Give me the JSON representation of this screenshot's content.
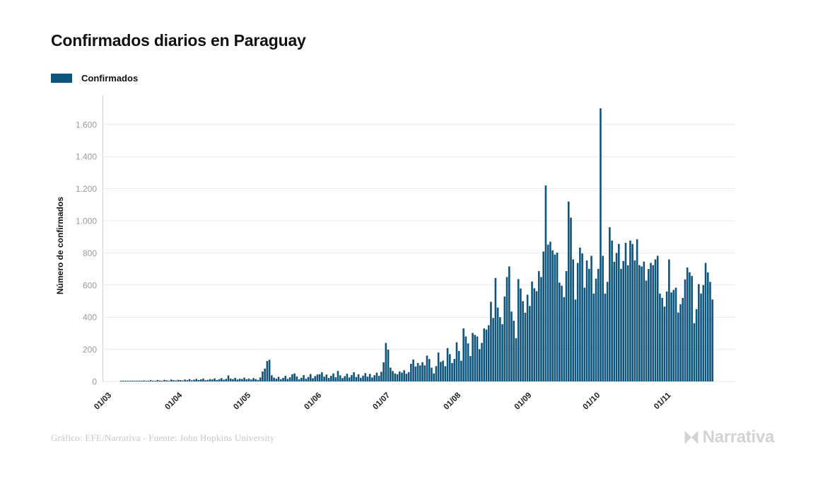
{
  "header": {
    "title": "Confirmados diarios en Paraguay"
  },
  "legend": {
    "label": "Confirmados",
    "swatch_color": "#0e557c"
  },
  "chart_data": {
    "type": "bar",
    "title": "Confirmados diarios en Paraguay",
    "ylabel": "Número de confirmados",
    "xlabel": "",
    "legend": [
      "Confirmados"
    ],
    "bar_color": "#0e557c",
    "grid": true,
    "ylim": [
      0,
      1700
    ],
    "y_ticks": [
      0,
      200,
      400,
      600,
      800,
      1000,
      1200,
      1400,
      1600
    ],
    "y_tick_labels": [
      "0",
      "200",
      "400",
      "600",
      "800",
      "1.000",
      "1.200",
      "1.400",
      "1.600"
    ],
    "x_ticks": [
      {
        "label": "01/03",
        "day": 0
      },
      {
        "label": "01/04",
        "day": 31
      },
      {
        "label": "01/05",
        "day": 61
      },
      {
        "label": "01/06",
        "day": 92
      },
      {
        "label": "01/07",
        "day": 122
      },
      {
        "label": "01/08",
        "day": 153
      },
      {
        "label": "01/09",
        "day": 184
      },
      {
        "label": "01/10",
        "day": 214
      },
      {
        "label": "01/11",
        "day": 245
      }
    ],
    "x_start_label": "01/03",
    "values": [
      0,
      0,
      0,
      0,
      0,
      1,
      2,
      1,
      2,
      3,
      2,
      4,
      3,
      5,
      2,
      6,
      4,
      3,
      8,
      5,
      4,
      9,
      6,
      4,
      10,
      7,
      5,
      12,
      8,
      6,
      10,
      9,
      6,
      12,
      8,
      15,
      7,
      11,
      16,
      9,
      13,
      18,
      8,
      10,
      15,
      12,
      19,
      9,
      14,
      21,
      11,
      16,
      37,
      18,
      14,
      22,
      12,
      17,
      15,
      24,
      13,
      18,
      12,
      21,
      15,
      10,
      25,
      62,
      80,
      127,
      135,
      38,
      24,
      17,
      29,
      14,
      22,
      35,
      16,
      26,
      44,
      50,
      31,
      13,
      23,
      39,
      17,
      28,
      46,
      20,
      33,
      43,
      45,
      57,
      30,
      43,
      22,
      35,
      50,
      26,
      65,
      38,
      21,
      33,
      48,
      25,
      40,
      57,
      28,
      45,
      23,
      36,
      52,
      30,
      47,
      25,
      39,
      55,
      35,
      60,
      119,
      240,
      198,
      86,
      65,
      50,
      45,
      62,
      55,
      70,
      48,
      58,
      110,
      137,
      93,
      115,
      100,
      120,
      100,
      161,
      140,
      86,
      50,
      95,
      180,
      122,
      129,
      95,
      208,
      170,
      115,
      140,
      244,
      190,
      129,
      330,
      280,
      237,
      158,
      302,
      290,
      280,
      201,
      240,
      330,
      323,
      350,
      496,
      395,
      644,
      460,
      400,
      356,
      529,
      650,
      716,
      435,
      378,
      270,
      637,
      579,
      500,
      428,
      540,
      470,
      622,
      580,
      562,
      687,
      650,
      809,
      1220,
      852,
      870,
      816,
      790,
      802,
      615,
      596,
      525,
      687,
      1120,
      1020,
      760,
      510,
      738,
      833,
      797,
      584,
      753,
      701,
      782,
      547,
      640,
      701,
      1700,
      782,
      547,
      620,
      960,
      877,
      745,
      800,
      856,
      701,
      750,
      863,
      723,
      877,
      856,
      753,
      885,
      724,
      716,
      746,
      628,
      700,
      738,
      724,
      760,
      782,
      547,
      520,
      466,
      560,
      760,
      554,
      570,
      584,
      429,
      481,
      520,
      635,
      709,
      680,
      657,
      363,
      450,
      606,
      547,
      600,
      738,
      679,
      620,
      510
    ]
  },
  "footer": {
    "credit": "Gráfico: EFE/Narrativa - Fuente: John Hopkins University",
    "logo_text": "Narrativa"
  }
}
